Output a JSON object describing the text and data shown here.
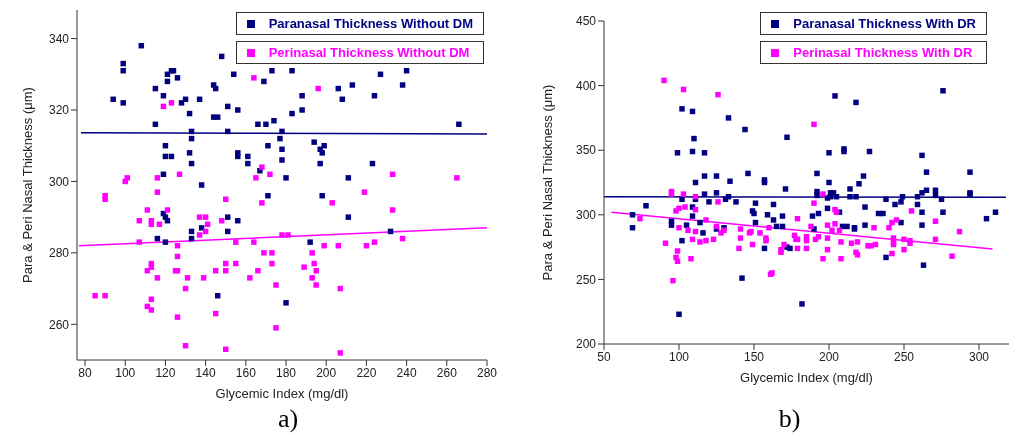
{
  "chart_data": [
    {
      "type": "scatter",
      "xlabel": "Glycemic Index (mg/dl)",
      "ylabel": "Para & Peri Nasal Thickness (μm)",
      "xlim": [
        76,
        280
      ],
      "ylim": [
        250,
        348
      ],
      "xticks": [
        80,
        100,
        120,
        140,
        160,
        180,
        200,
        220,
        240,
        260,
        280
      ],
      "yticks": [
        260,
        280,
        300,
        320,
        340
      ],
      "legend": "top right",
      "marker": "square",
      "annotations": [
        "a)"
      ],
      "series": [
        {
          "name": "Paranasal Thickness Without DM",
          "color": "#000080",
          "x": [
            108,
            99,
            99,
            121,
            123,
            124,
            121,
            126,
            115,
            119,
            94,
            99,
            130,
            128,
            137,
            132,
            144,
            145,
            148,
            154,
            151,
            156,
            144,
            146,
            115,
            133,
            151,
            133,
            120,
            120,
            123,
            132,
            133,
            119,
            138,
            156,
            156,
            161,
            161,
            167,
            166,
            170,
            174,
            173,
            169,
            171,
            177,
            178,
            178,
            178,
            180,
            171,
            119,
            120,
            121,
            133,
            138,
            151,
            156,
            116,
            120,
            133,
            151,
            146,
            180,
            183,
            227,
            240,
            206,
            213,
            238,
            188,
            208,
            224,
            183,
            188,
            266,
            194,
            197,
            199,
            198,
            197,
            223,
            211,
            198,
            211,
            232,
            192
          ],
          "values": [
            338,
            333,
            331,
            330,
            331,
            331,
            328,
            329,
            326,
            324,
            323,
            322,
            323,
            322,
            323,
            319,
            327,
            326,
            335,
            330,
            321,
            320,
            318,
            318,
            316,
            314,
            314,
            312,
            310,
            307,
            307,
            308,
            305,
            302,
            299,
            308,
            307,
            307,
            305,
            303,
            316,
            316,
            317,
            331,
            328,
            310,
            312,
            314,
            309,
            306,
            301,
            296,
            291,
            290,
            289,
            286,
            287,
            290,
            289,
            284,
            283,
            284,
            286,
            268,
            266,
            331,
            330,
            331,
            326,
            327,
            327,
            324,
            323,
            324,
            319,
            320,
            316,
            311,
            309,
            310,
            308,
            305,
            305,
            301,
            296,
            290,
            286,
            283
          ]
        },
        {
          "name": "Perinasal Thickness Without DM",
          "color": "#ff00ff",
          "x": [
            164,
            119,
            123,
            168,
            172,
            165,
            100,
            101,
            116,
            127,
            90,
            90,
            116,
            150,
            168,
            111,
            121,
            107,
            113,
            113,
            117,
            137,
            140,
            137,
            140,
            141,
            148,
            107,
            126,
            126,
            113,
            111,
            113,
            116,
            125,
            126,
            131,
            130,
            139,
            145,
            150,
            150,
            155,
            155,
            164,
            169,
            173,
            173,
            166,
            162,
            175,
            85,
            90,
            113,
            111,
            113,
            126,
            145,
            175,
            130,
            150,
            178,
            181,
            196,
            233,
            265,
            219,
            203,
            233,
            199,
            206,
            220,
            224,
            238,
            193,
            194,
            189,
            193,
            195,
            195,
            207,
            207
          ],
          "values": [
            329,
            321,
            322,
            304,
            302,
            301,
            300,
            301,
            301,
            302,
            296,
            295,
            297,
            295,
            294,
            292,
            292,
            289,
            289,
            288,
            288,
            290,
            290,
            285,
            286,
            288,
            289,
            283,
            282,
            279,
            277,
            275,
            276,
            273,
            275,
            275,
            273,
            270,
            273,
            275,
            277,
            275,
            283,
            277,
            283,
            280,
            280,
            277,
            275,
            273,
            271,
            268,
            268,
            267,
            265,
            264,
            262,
            263,
            259,
            254,
            253,
            285,
            285,
            326,
            302,
            301,
            297,
            294,
            292,
            282,
            282,
            282,
            283,
            284,
            280,
            277,
            276,
            273,
            275,
            271,
            270,
            252
          ]
        },
        {
          "type": "line",
          "marker": "none",
          "color": "#000080",
          "x": [
            78,
            280
          ],
          "values": [
            313.6,
            313.3
          ]
        },
        {
          "type": "line",
          "marker": "none",
          "color": "#ff00ff",
          "x": [
            77,
            280
          ],
          "values": [
            282,
            287
          ]
        }
      ]
    },
    {
      "type": "scatter",
      "xlabel": "Glycemic Index (mg/dl)",
      "ylabel": "Para & Peri Nasal Thickness (μm)",
      "xlim": [
        50,
        320
      ],
      "ylim": [
        200,
        450
      ],
      "xticks": [
        50,
        100,
        150,
        200,
        250,
        300
      ],
      "yticks": [
        200,
        250,
        300,
        350,
        400,
        450
      ],
      "legend": "top right",
      "marker": "square",
      "annotations": [
        "b)"
      ],
      "series": [
        {
          "name": "Paranasal Thickness With DR",
          "color": "#000080",
          "x": [
            69,
            69,
            78,
            95,
            95,
            99,
            100,
            102,
            102,
            102,
            105,
            109,
            109,
            110,
            117,
            111,
            109,
            109,
            111,
            114,
            116,
            117,
            117,
            120,
            125,
            125,
            125,
            130,
            131,
            133,
            133,
            134,
            138,
            142,
            144,
            146,
            149,
            150,
            151,
            151,
            157,
            157,
            157,
            159,
            163,
            163,
            165,
            169,
            169,
            171,
            172,
            172,
            174,
            182,
            189,
            190,
            192,
            192,
            192,
            193,
            199,
            199,
            200,
            200,
            204,
            201,
            203,
            201,
            205,
            207,
            209,
            212,
            210,
            210,
            214,
            214,
            217,
            217,
            218,
            218,
            220,
            223,
            224,
            224,
            227,
            233,
            236,
            238,
            238,
            244,
            248,
            248,
            249,
            259,
            259,
            262,
            262,
            262,
            262,
            263,
            265,
            265,
            271,
            271,
            275,
            276,
            276,
            294,
            294,
            294,
            305,
            311
          ],
          "values": [
            290,
            300,
            307,
            292,
            295,
            348,
            223,
            382,
            312,
            280,
            292,
            380,
            349,
            359,
            348,
            325,
            306,
            299,
            312,
            294,
            286,
            330,
            316,
            310,
            330,
            317,
            289,
            290,
            312,
            314,
            375,
            326,
            310,
            251,
            366,
            332,
            303,
            301,
            309,
            294,
            274,
            327,
            325,
            300,
            308,
            296,
            291,
            299,
            291,
            320,
            360,
            275,
            274,
            231,
            299,
            289,
            332,
            318,
            315,
            301,
            305,
            313,
            325,
            348,
            392,
            317,
            317,
            314,
            314,
            302,
            291,
            291,
            351,
            349,
            320,
            314,
            290,
            289,
            387,
            314,
            324,
            330,
            306,
            292,
            349,
            301,
            301,
            312,
            267,
            308,
            310,
            294,
            314,
            314,
            308,
            346,
            317,
            302,
            292,
            261,
            333,
            319,
            319,
            315,
            312,
            302,
            396,
            333,
            316,
            317,
            297,
            302
          ]
        },
        {
          "name": "Perinasal Thickness With DR",
          "color": "#ff00ff",
          "x": [
            90,
            103,
            126,
            95,
            95,
            103,
            111,
            126,
            104,
            98,
            100,
            111,
            74,
            100,
            106,
            111,
            109,
            118,
            114,
            118,
            123,
            125,
            128,
            130,
            91,
            99,
            98,
            99,
            108,
            96,
            141,
            141,
            140,
            148,
            149,
            154,
            147,
            190,
            158,
            158,
            160,
            161,
            162,
            168,
            168,
            170,
            177,
            178,
            179,
            179,
            179,
            185,
            185,
            185,
            188,
            190,
            191,
            193,
            196,
            196,
            199,
            199,
            199,
            202,
            204,
            205,
            204,
            207,
            208,
            208,
            215,
            218,
            219,
            219,
            226,
            228,
            230,
            231,
            240,
            242,
            243,
            243,
            243,
            245,
            242,
            250,
            250,
            254,
            254,
            255,
            271,
            271,
            282,
            287
          ],
          "values": [
            404,
            397,
            393,
            318,
            316,
            316,
            314,
            310,
            306,
            303,
            305,
            304,
            297,
            290,
            288,
            287,
            281,
            296,
            279,
            280,
            281,
            291,
            286,
            288,
            278,
            272,
            267,
            264,
            266,
            249,
            289,
            282,
            274,
            287,
            277,
            286,
            286,
            370,
            282,
            280,
            290,
            254,
            255,
            273,
            271,
            277,
            284,
            281,
            297,
            281,
            274,
            283,
            280,
            274,
            291,
            309,
            281,
            283,
            316,
            266,
            292,
            282,
            273,
            288,
            304,
            302,
            293,
            288,
            279,
            266,
            278,
            271,
            269,
            279,
            276,
            276,
            290,
            277,
            290,
            294,
            282,
            279,
            277,
            296,
            270,
            281,
            273,
            280,
            278,
            303,
            295,
            281,
            268,
            287
          ]
        },
        {
          "type": "line",
          "marker": "none",
          "color": "#000080",
          "x": [
            50,
            318
          ],
          "values": [
            314,
            313.6
          ]
        },
        {
          "type": "line",
          "marker": "none",
          "color": "#ff00ff",
          "x": [
            55,
            309
          ],
          "values": [
            302,
            273.6
          ]
        }
      ]
    }
  ]
}
